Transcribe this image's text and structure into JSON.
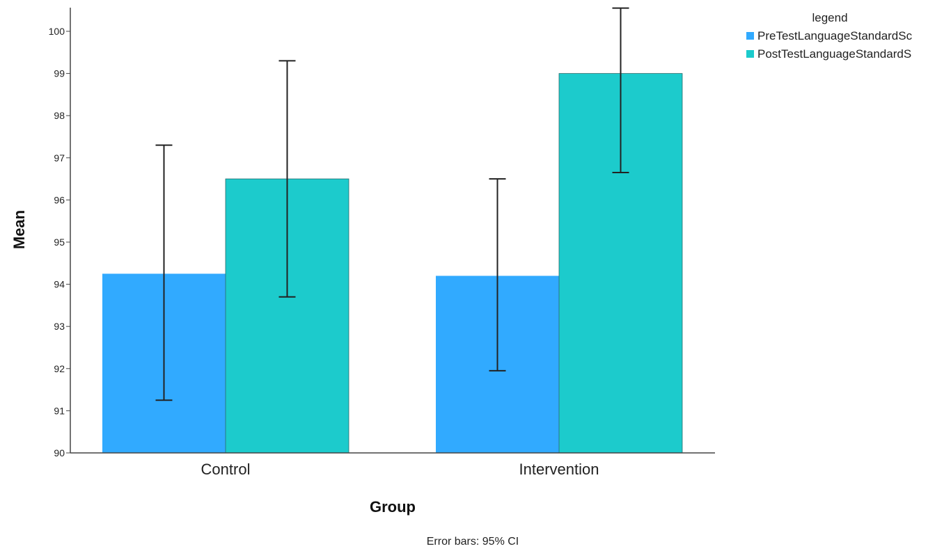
{
  "chart_data": {
    "type": "bar",
    "title": "",
    "xlabel": "Group",
    "ylabel": "Mean",
    "footnote": "Error bars: 95% CI",
    "categories": [
      "Control",
      "Intervention"
    ],
    "ylim": [
      90,
      100.6
    ],
    "yticks": [
      90,
      91,
      92,
      93,
      94,
      95,
      96,
      97,
      98,
      99,
      100
    ],
    "grid": false,
    "legend": {
      "title": "legend",
      "position": "top-right"
    },
    "series": [
      {
        "name": "PreTestLanguageStandardSc",
        "color": "#31aaff",
        "values": [
          94.25,
          94.2
        ],
        "ci_low": [
          91.25,
          91.95
        ],
        "ci_high": [
          97.3,
          96.5
        ]
      },
      {
        "name": "PostTestLanguageStandardS",
        "color": "#1ccbcc",
        "values": [
          96.5,
          99.0
        ],
        "ci_low": [
          93.7,
          96.65
        ],
        "ci_high": [
          99.3,
          100.55
        ]
      }
    ]
  }
}
